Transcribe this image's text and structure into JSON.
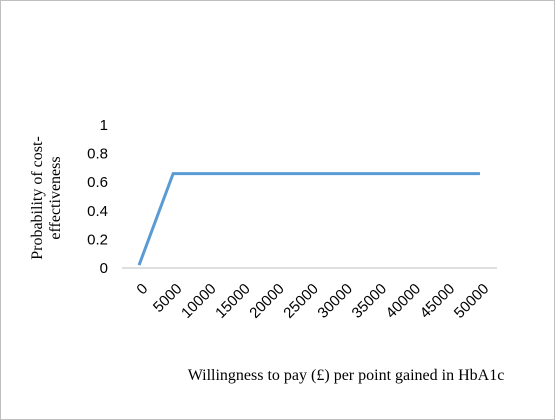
{
  "chart_data": {
    "type": "line",
    "ylabel": [
      "Probability of cost-",
      "effectiveness"
    ],
    "xlabel": "Willingness to pay (£) per point gained in HbA1c",
    "categories": [
      "0",
      "5000",
      "10000",
      "15000",
      "20000",
      "25000",
      "30000",
      "35000",
      "40000",
      "45000",
      "50000"
    ],
    "values": [
      0.02,
      0.66,
      0.66,
      0.66,
      0.66,
      0.66,
      0.66,
      0.66,
      0.66,
      0.66,
      0.66
    ],
    "color": "#5b9bd5",
    "ylim": [
      0,
      1
    ],
    "yticks": [
      0,
      0.2,
      0.4,
      0.6,
      0.8,
      1
    ],
    "grid": false
  }
}
